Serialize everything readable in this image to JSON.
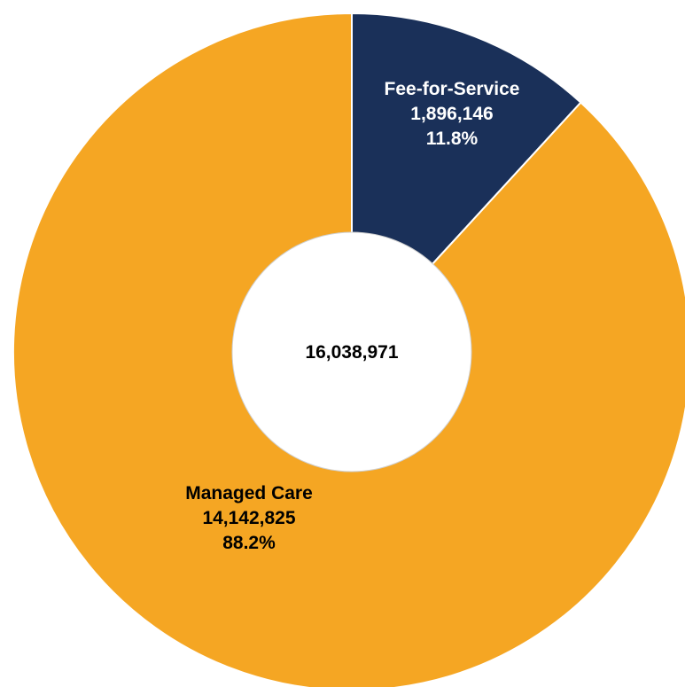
{
  "chart_data": {
    "type": "pie",
    "variant": "donut",
    "total_label": "16,038,971",
    "slices": [
      {
        "name": "Fee-for-Service",
        "value": 1896146,
        "value_label": "1,896,146",
        "percent_label": "11.8%",
        "color": "#1a3059",
        "label_color": "#ffffff"
      },
      {
        "name": "Managed Care",
        "value": 14142825,
        "value_label": "14,142,825",
        "percent_label": "88.2%",
        "color": "#f5a623",
        "label_color": "#000000"
      }
    ],
    "start": "12 o'clock",
    "direction": "clockwise",
    "legend": "none"
  }
}
